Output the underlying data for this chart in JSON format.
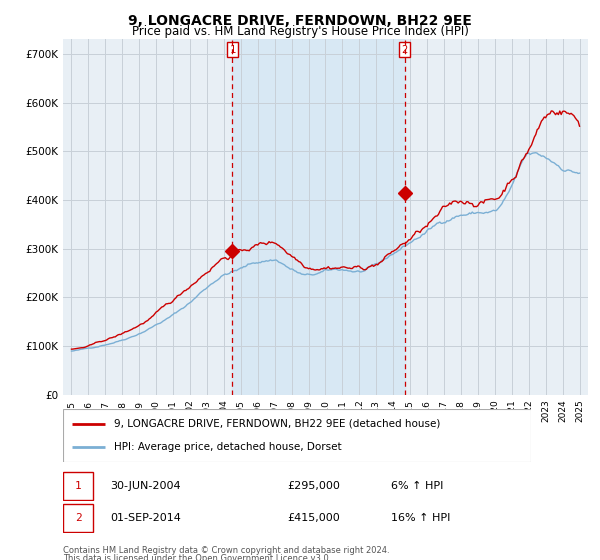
{
  "title": "9, LONGACRE DRIVE, FERNDOWN, BH22 9EE",
  "subtitle": "Price paid vs. HM Land Registry's House Price Index (HPI)",
  "legend_line1": "9, LONGACRE DRIVE, FERNDOWN, BH22 9EE (detached house)",
  "legend_line2": "HPI: Average price, detached house, Dorset",
  "footnote1": "Contains HM Land Registry data © Crown copyright and database right 2024.",
  "footnote2": "This data is licensed under the Open Government Licence v3.0.",
  "table_rows": [
    {
      "label": "1",
      "date": "30-JUN-2004",
      "price": "£295,000",
      "pct": "6% ↑ HPI"
    },
    {
      "label": "2",
      "date": "01-SEP-2014",
      "price": "£415,000",
      "pct": "16% ↑ HPI"
    }
  ],
  "purchase1_year": 2004.5,
  "purchase1_price": 295000,
  "purchase2_year": 2014.67,
  "purchase2_price": 415000,
  "hpi_color": "#7bafd4",
  "price_color": "#cc0000",
  "marker_color": "#cc0000",
  "shade_color": "#d8e8f4",
  "bg_color": "#e8eff5",
  "grid_color": "#c8d0d8",
  "ylim": [
    0,
    730000
  ],
  "yticks": [
    0,
    100000,
    200000,
    300000,
    400000,
    500000,
    600000,
    700000
  ],
  "ytick_labels": [
    "£0",
    "£100K",
    "£200K",
    "£300K",
    "£400K",
    "£500K",
    "£600K",
    "£700K"
  ],
  "xlim_min": 1994.5,
  "xlim_max": 2025.5,
  "seed": 42
}
